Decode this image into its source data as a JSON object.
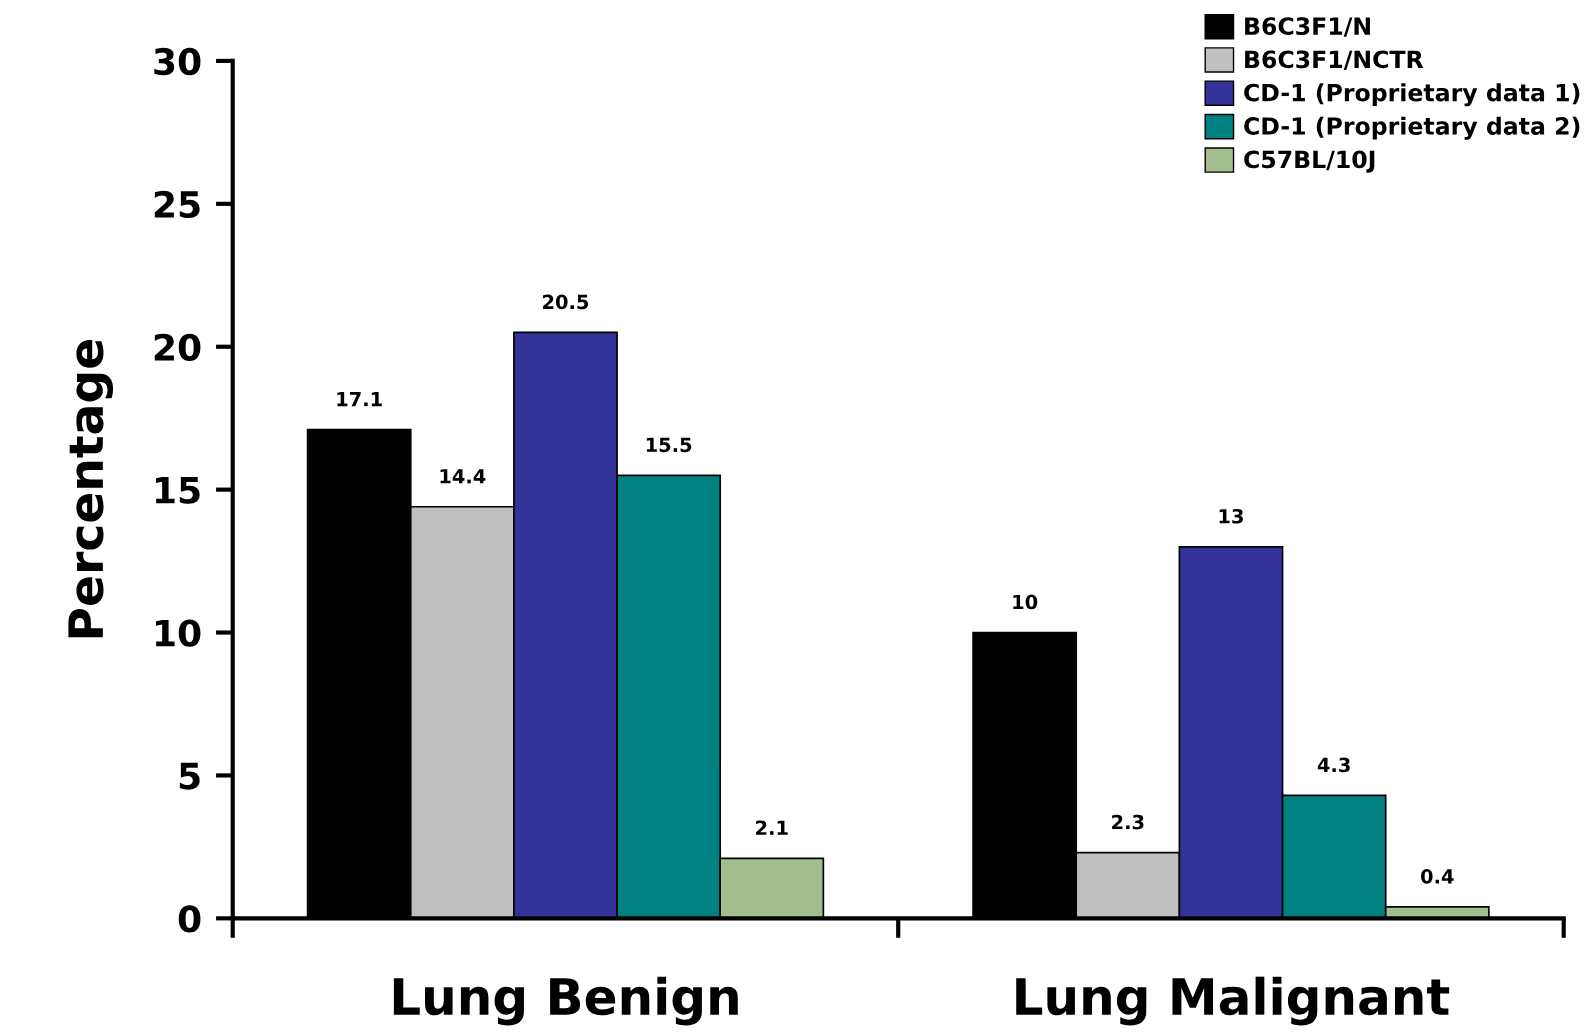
{
  "chart_data": {
    "type": "bar",
    "ylabel": "Percentage",
    "categories": [
      "Lung Benign",
      "Lung Malignant"
    ],
    "series": [
      {
        "name": "B6C3F1/N",
        "color": "#000000",
        "values": [
          17.1,
          10
        ]
      },
      {
        "name": "B6C3F1/NCTR",
        "color": "#c0c0c0",
        "values": [
          14.4,
          2.3
        ]
      },
      {
        "name": "CD-1 (Proprietary data 1)",
        "color": "#333399",
        "values": [
          20.5,
          13
        ]
      },
      {
        "name": "CD-1 (Proprietary data 2)",
        "color": "#008080",
        "values": [
          15.5,
          4.3
        ]
      },
      {
        "name": "C57BL/10J",
        "color": "#a3be8e",
        "values": [
          2.1,
          0.4
        ]
      }
    ],
    "ylim": [
      0,
      30
    ],
    "yticks": [
      0,
      5,
      10,
      15,
      20,
      25,
      30
    ],
    "data_labels": true,
    "grid": false,
    "legend": "top right"
  }
}
